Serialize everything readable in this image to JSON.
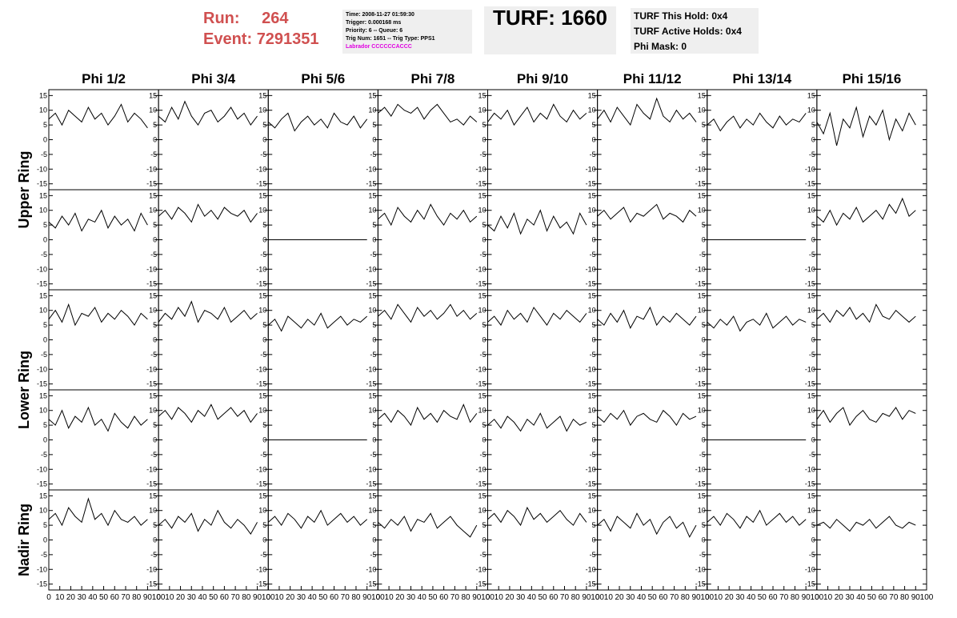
{
  "header": {
    "run_label": "Run:",
    "run": "264",
    "event_label": "Event:",
    "event": "7291351",
    "info": [
      "Time: 2008-11-27 01:59:30",
      "Trigger: 0.000168 ms",
      "Priority: 6 -- Queue: 6",
      "Trig Num: 1651 -- Trig Type: PPS1"
    ],
    "labrador": "Labrador CCCCCCACCC",
    "turf": "TURF: 1660",
    "turf_info": [
      "TURF This Hold: 0x4",
      "TURF Active Holds: 0x4",
      "Phi Mask: 0"
    ]
  },
  "columns": [
    "Phi 1/2",
    "Phi 3/4",
    "Phi 5/6",
    "Phi 7/8",
    "Phi 9/10",
    "Phi 11/12",
    "Phi 13/14",
    "Phi 15/16"
  ],
  "row_labels": [
    "Upper Ring",
    "Lower Ring",
    "Nadir Ring"
  ],
  "axes": {
    "x": [
      0,
      6,
      12,
      18,
      24,
      30,
      36,
      42,
      48,
      54,
      60,
      66,
      72,
      78,
      84,
      90
    ],
    "xlim": [
      0,
      100
    ],
    "xticks": [
      0,
      10,
      20,
      30,
      40,
      50,
      60,
      70,
      80,
      90,
      100
    ],
    "ylim": [
      -17,
      17
    ],
    "yticks": [
      -15,
      -10,
      -5,
      0,
      5,
      10,
      15
    ],
    "color": "#000000"
  },
  "chart_data": [
    {
      "type": "line",
      "values": [
        7,
        9,
        5,
        10,
        8,
        6,
        11,
        7,
        9,
        5,
        8,
        12,
        6,
        9,
        7,
        4
      ]
    },
    {
      "type": "line",
      "values": [
        8,
        6,
        11,
        7,
        13,
        8,
        5,
        9,
        10,
        6,
        8,
        11,
        7,
        9,
        5,
        8
      ]
    },
    {
      "type": "line",
      "values": [
        6,
        4,
        7,
        9,
        3,
        6,
        8,
        5,
        7,
        4,
        9,
        6,
        5,
        8,
        4,
        7
      ]
    },
    {
      "type": "line",
      "values": [
        9,
        11,
        8,
        12,
        10,
        9,
        11,
        7,
        10,
        12,
        9,
        6,
        7,
        5,
        8,
        6
      ]
    },
    {
      "type": "line",
      "values": [
        6,
        9,
        7,
        10,
        5,
        8,
        11,
        6,
        9,
        7,
        12,
        8,
        6,
        10,
        7,
        9
      ]
    },
    {
      "type": "line",
      "values": [
        7,
        10,
        6,
        11,
        8,
        5,
        12,
        9,
        7,
        14,
        8,
        6,
        10,
        7,
        9,
        6
      ]
    },
    {
      "type": "line",
      "values": [
        5,
        7,
        3,
        6,
        8,
        4,
        7,
        5,
        9,
        6,
        4,
        8,
        5,
        7,
        6,
        9
      ]
    },
    {
      "type": "line",
      "values": [
        6,
        2,
        9,
        -2,
        7,
        4,
        11,
        1,
        8,
        5,
        10,
        0,
        7,
        3,
        9,
        5
      ]
    },
    {
      "type": "line",
      "values": [
        6,
        4,
        8,
        5,
        9,
        3,
        7,
        6,
        10,
        4,
        8,
        5,
        7,
        3,
        9,
        5
      ]
    },
    {
      "type": "line",
      "values": [
        8,
        10,
        7,
        11,
        9,
        6,
        12,
        8,
        10,
        7,
        11,
        9,
        8,
        10,
        6,
        9
      ]
    },
    {
      "type": "line",
      "values": [
        0,
        0,
        0,
        0,
        0,
        0,
        0,
        0,
        0,
        0,
        0,
        0,
        0,
        0,
        0,
        0
      ]
    },
    {
      "type": "line",
      "values": [
        7,
        9,
        5,
        11,
        8,
        6,
        10,
        7,
        12,
        8,
        5,
        9,
        7,
        10,
        6,
        8
      ]
    },
    {
      "type": "line",
      "values": [
        5,
        3,
        8,
        4,
        9,
        2,
        7,
        5,
        10,
        3,
        8,
        4,
        6,
        2,
        9,
        5
      ]
    },
    {
      "type": "line",
      "values": [
        8,
        10,
        7,
        9,
        11,
        6,
        9,
        8,
        10,
        12,
        7,
        9,
        8,
        6,
        10,
        8
      ]
    },
    {
      "type": "line",
      "values": [
        0,
        0,
        0,
        0,
        0,
        0,
        0,
        0,
        0,
        0,
        0,
        0,
        0,
        0,
        0,
        0
      ]
    },
    {
      "type": "line",
      "values": [
        8,
        6,
        10,
        5,
        9,
        7,
        11,
        6,
        8,
        10,
        7,
        12,
        9,
        14,
        8,
        10
      ]
    },
    {
      "type": "line",
      "values": [
        7,
        10,
        6,
        12,
        5,
        9,
        8,
        11,
        6,
        9,
        7,
        10,
        8,
        5,
        9,
        7
      ]
    },
    {
      "type": "line",
      "values": [
        6,
        9,
        7,
        11,
        8,
        13,
        6,
        10,
        9,
        7,
        11,
        6,
        8,
        10,
        7,
        9
      ]
    },
    {
      "type": "line",
      "values": [
        5,
        7,
        3,
        8,
        6,
        4,
        7,
        5,
        9,
        4,
        6,
        8,
        5,
        7,
        6,
        8
      ]
    },
    {
      "type": "line",
      "values": [
        8,
        10,
        7,
        12,
        9,
        6,
        11,
        8,
        10,
        7,
        9,
        12,
        8,
        10,
        7,
        9
      ]
    },
    {
      "type": "line",
      "values": [
        6,
        8,
        5,
        10,
        7,
        9,
        6,
        11,
        8,
        5,
        9,
        7,
        10,
        8,
        6,
        9
      ]
    },
    {
      "type": "line",
      "values": [
        7,
        5,
        9,
        6,
        10,
        4,
        8,
        7,
        11,
        5,
        8,
        6,
        9,
        7,
        5,
        8
      ]
    },
    {
      "type": "line",
      "values": [
        6,
        4,
        7,
        5,
        8,
        3,
        6,
        7,
        5,
        9,
        4,
        6,
        8,
        5,
        7,
        6
      ]
    },
    {
      "type": "line",
      "values": [
        7,
        9,
        6,
        10,
        8,
        11,
        7,
        9,
        6,
        12,
        8,
        7,
        10,
        8,
        6,
        8
      ]
    },
    {
      "type": "line",
      "values": [
        7,
        5,
        10,
        4,
        8,
        6,
        11,
        5,
        7,
        3,
        9,
        6,
        4,
        8,
        5,
        7
      ]
    },
    {
      "type": "line",
      "values": [
        8,
        10,
        7,
        11,
        9,
        6,
        10,
        8,
        12,
        7,
        9,
        11,
        8,
        10,
        6,
        9
      ]
    },
    {
      "type": "line",
      "values": [
        0,
        0,
        0,
        0,
        0,
        0,
        0,
        0,
        0,
        0,
        0,
        0,
        0,
        0,
        0,
        0
      ]
    },
    {
      "type": "line",
      "values": [
        7,
        9,
        6,
        10,
        8,
        5,
        11,
        7,
        9,
        6,
        10,
        8,
        7,
        12,
        6,
        9
      ]
    },
    {
      "type": "line",
      "values": [
        5,
        7,
        4,
        8,
        6,
        3,
        7,
        5,
        9,
        4,
        6,
        8,
        3,
        7,
        5,
        6
      ]
    },
    {
      "type": "line",
      "values": [
        8,
        6,
        9,
        7,
        10,
        5,
        8,
        9,
        7,
        6,
        10,
        8,
        5,
        9,
        7,
        8
      ]
    },
    {
      "type": "line",
      "values": [
        0,
        0,
        0,
        0,
        0,
        0,
        0,
        0,
        0,
        0,
        0,
        0,
        0,
        0,
        0,
        0
      ]
    },
    {
      "type": "line",
      "values": [
        7,
        10,
        6,
        9,
        11,
        5,
        8,
        10,
        7,
        6,
        9,
        8,
        11,
        7,
        10,
        9
      ]
    },
    {
      "type": "line",
      "values": [
        7,
        9,
        5,
        11,
        8,
        6,
        14,
        7,
        9,
        5,
        10,
        7,
        6,
        8,
        5,
        7
      ]
    },
    {
      "type": "line",
      "values": [
        5,
        7,
        4,
        8,
        6,
        9,
        3,
        7,
        5,
        10,
        6,
        4,
        7,
        5,
        2,
        6
      ]
    },
    {
      "type": "line",
      "values": [
        6,
        8,
        5,
        9,
        7,
        4,
        8,
        6,
        10,
        5,
        7,
        9,
        6,
        8,
        5,
        7
      ]
    },
    {
      "type": "line",
      "values": [
        6,
        4,
        7,
        5,
        8,
        3,
        7,
        6,
        9,
        4,
        6,
        8,
        5,
        3,
        1,
        5
      ]
    },
    {
      "type": "line",
      "values": [
        7,
        9,
        6,
        10,
        8,
        5,
        11,
        7,
        9,
        6,
        8,
        10,
        7,
        5,
        9,
        6
      ]
    },
    {
      "type": "line",
      "values": [
        5,
        7,
        3,
        8,
        6,
        4,
        9,
        5,
        7,
        2,
        6,
        8,
        4,
        6,
        1,
        5
      ]
    },
    {
      "type": "line",
      "values": [
        6,
        8,
        5,
        9,
        7,
        4,
        8,
        6,
        10,
        5,
        7,
        9,
        6,
        8,
        5,
        7
      ]
    },
    {
      "type": "line",
      "values": [
        5,
        6,
        4,
        7,
        5,
        3,
        6,
        5,
        7,
        4,
        6,
        8,
        5,
        4,
        6,
        5
      ]
    }
  ]
}
